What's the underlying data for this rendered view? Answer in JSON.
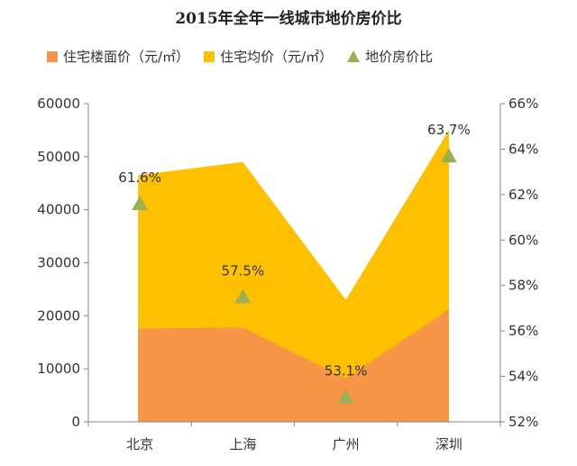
{
  "chart_data": {
    "type": "area",
    "title": "2015年全年一线城市地价房价比",
    "categories": [
      "北京",
      "上海",
      "广州",
      "深圳"
    ],
    "series": [
      {
        "name": "住宅楼面价（元/㎡）",
        "type": "area",
        "axis": "left",
        "color": "#F79646",
        "values": [
          17600,
          17800,
          8200,
          21200
        ]
      },
      {
        "name": "住宅均价（元/㎡）",
        "type": "area",
        "axis": "left",
        "color": "#FFC000",
        "values": [
          46500,
          49000,
          23000,
          55000
        ]
      },
      {
        "name": "地价房价比",
        "type": "scatter",
        "axis": "right",
        "color": "#9BAF55",
        "values": [
          61.6,
          57.5,
          53.1,
          63.7
        ],
        "labels": [
          "61.6%",
          "57.5%",
          "53.1%",
          "63.7%"
        ]
      }
    ],
    "y_left": {
      "min": 0,
      "max": 60000,
      "ticks": [
        "0",
        "10000",
        "20000",
        "30000",
        "40000",
        "50000",
        "60000"
      ]
    },
    "y_right": {
      "min": 52,
      "max": 66,
      "ticks": [
        "52%",
        "54%",
        "56%",
        "58%",
        "60%",
        "62%",
        "64%",
        "66%"
      ]
    },
    "grid": false,
    "legend_position": "top"
  }
}
